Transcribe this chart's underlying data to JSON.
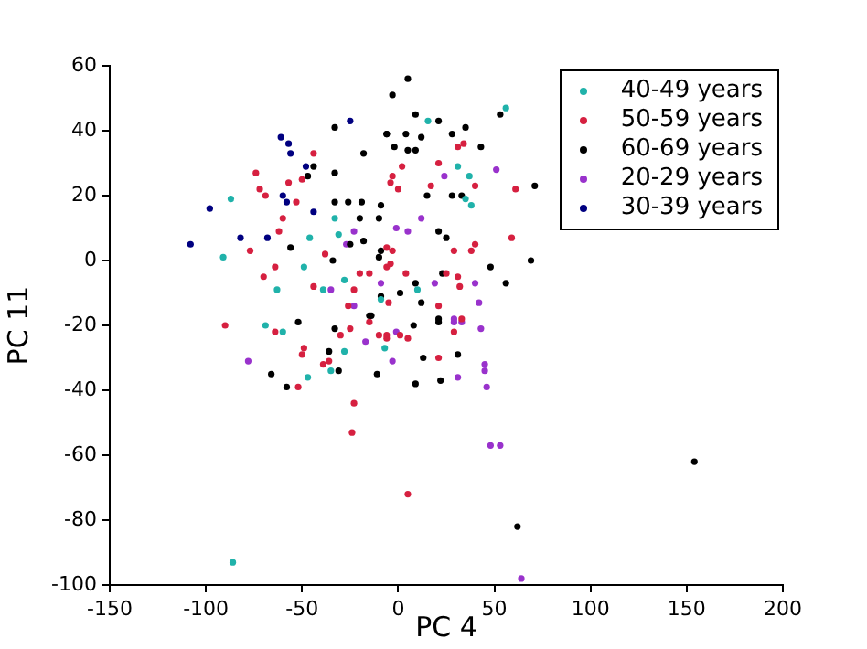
{
  "chart_data": {
    "type": "scatter",
    "xlabel": "PC 4",
    "ylabel": "PC 11",
    "xlim": [
      -150,
      200
    ],
    "xticks": [
      -150,
      -100,
      -50,
      0,
      50,
      100,
      150,
      200
    ],
    "ylim": [
      -100,
      60
    ],
    "yticks": [
      -100,
      -80,
      -60,
      -40,
      -20,
      0,
      20,
      40,
      60
    ],
    "grid": false,
    "legend": "top right",
    "marker": "circle",
    "series": [
      {
        "name": "40-49 years",
        "color": "#20b2aa",
        "x": [
          -86,
          56,
          15.5,
          31,
          37,
          35,
          38,
          10,
          -87,
          -91,
          -63,
          -46,
          -49,
          -39,
          -33,
          -31,
          -28,
          -9,
          -69,
          -60,
          -28,
          -35,
          -47,
          -7
        ],
        "values": [
          -93,
          47,
          43,
          29,
          26,
          19,
          17,
          -9,
          19,
          1,
          -9,
          7,
          -2,
          -9,
          13,
          8,
          -6,
          -12,
          -20,
          -22,
          -28,
          -34,
          -36,
          -27
        ]
      },
      {
        "name": "50-59 years",
        "color": "#d62040",
        "x": [
          -74,
          -72,
          -69,
          -57,
          -53,
          -60,
          -62,
          -77,
          -44,
          -50,
          -64,
          -70,
          -38,
          -44,
          -20,
          -15,
          -23,
          -26,
          -6,
          -6,
          -4,
          -90,
          -64,
          -49,
          -50,
          -52,
          -39,
          -36,
          -30,
          -25,
          -23,
          -24,
          -15,
          -10,
          -6,
          5,
          -6,
          1,
          5,
          21,
          29,
          33,
          2,
          -3,
          0,
          31,
          34,
          21,
          40,
          17,
          61,
          59,
          38,
          40,
          -3,
          -4,
          29,
          31,
          25,
          4,
          21,
          -5,
          32
        ],
        "values": [
          27,
          22,
          20,
          24,
          18,
          13,
          9,
          3,
          33,
          25,
          -2,
          -5,
          2,
          -8,
          -4,
          -4,
          -9,
          -14,
          4,
          -2,
          24,
          -20,
          -22,
          -27,
          -29,
          -39,
          -32,
          -31,
          -23,
          -21,
          -44,
          -53,
          -19,
          -23,
          -24,
          -72,
          -23,
          -23,
          -24,
          -30,
          -22,
          -18,
          29,
          26,
          22,
          35,
          36,
          30,
          23,
          23,
          22,
          7,
          3,
          5,
          3,
          -1,
          3,
          -5,
          -4,
          -4,
          -14,
          -13,
          -8
        ]
      },
      {
        "name": "60-69 years",
        "color": "#000000",
        "x": [
          5,
          -3,
          9,
          21,
          35,
          -6,
          4,
          12,
          28,
          -2,
          5,
          9,
          43,
          53,
          71,
          69,
          56,
          48,
          15,
          -9,
          28,
          33,
          21,
          25,
          -10,
          23,
          9,
          -9,
          1,
          -14,
          21,
          12,
          -33,
          -6,
          -18,
          -44,
          -47,
          -33,
          -33,
          -26,
          -19,
          -10,
          -20,
          -56,
          -25,
          -18,
          -9,
          -34,
          -15,
          -52,
          -58,
          -31,
          -33,
          -36,
          -11,
          -66,
          8,
          13,
          9,
          22,
          21,
          31,
          154,
          62
        ],
        "values": [
          56,
          51,
          45,
          43,
          41,
          39,
          39,
          38,
          39,
          35,
          34,
          34,
          35,
          45,
          23,
          0,
          -7,
          -2,
          20,
          17,
          20,
          20,
          9,
          7,
          1,
          -4,
          -7,
          -11,
          -10,
          -17,
          -18,
          -13,
          41,
          39,
          33,
          29,
          26,
          27,
          18,
          18,
          18,
          13,
          13,
          4,
          5,
          6,
          3,
          0,
          -17,
          -19,
          -39,
          -34,
          -21,
          -28,
          -35,
          -35,
          -20,
          -30,
          -38,
          -37,
          -19,
          -29,
          -62,
          -82
        ]
      },
      {
        "name": "20-29 years",
        "color": "#9932cc",
        "x": [
          -23,
          -27,
          -35,
          -23,
          -9,
          24,
          51,
          -1,
          12,
          5,
          19,
          40,
          29,
          42,
          -78,
          -17,
          -1,
          43,
          45,
          45,
          46,
          31,
          29,
          48,
          53,
          64,
          -3,
          33
        ],
        "values": [
          9,
          5,
          -9,
          -14,
          -7,
          26,
          28,
          10,
          13,
          9,
          -7,
          -7,
          -19,
          -13,
          -31,
          -25,
          -22,
          -21,
          -32,
          -34,
          -39,
          -36,
          -18,
          -57,
          -57,
          -98,
          -31,
          -19
        ]
      },
      {
        "name": "30-39 years",
        "color": "#000080",
        "x": [
          -108,
          -98,
          -82,
          -68,
          -61,
          -57,
          -56,
          -48,
          -25,
          -60,
          -58,
          -44
        ],
        "values": [
          5,
          16,
          7,
          7,
          38,
          36,
          33,
          29,
          43,
          20,
          18,
          15
        ]
      }
    ]
  }
}
